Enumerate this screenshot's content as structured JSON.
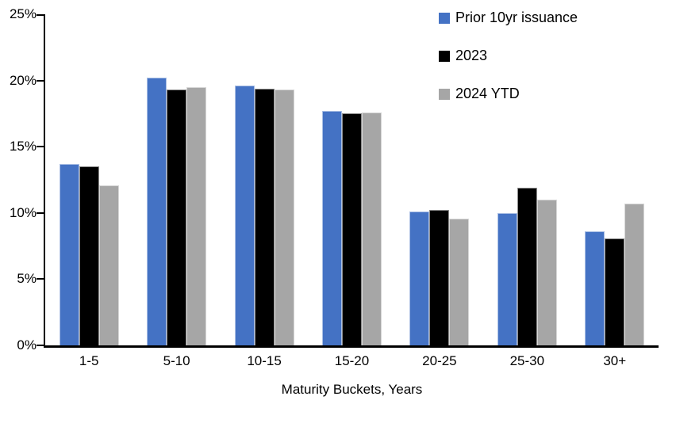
{
  "chart_data": {
    "type": "bar",
    "title": "",
    "xlabel": "Maturity Buckets, Years",
    "ylabel": "",
    "ylim": [
      0,
      25
    ],
    "yticks": [
      0,
      5,
      10,
      15,
      20,
      25
    ],
    "ytick_format": "percent",
    "grid": false,
    "legend_position": "top-right",
    "categories": [
      "1-5",
      "5-10",
      "10-15",
      "15-20",
      "20-25",
      "25-30",
      "30+"
    ],
    "series": [
      {
        "name": "Prior 10yr issuance",
        "color": "#4472C4",
        "values": [
          13.7,
          20.2,
          19.6,
          17.7,
          10.1,
          10.0,
          8.6
        ]
      },
      {
        "name": "2023",
        "color": "#000000",
        "values": [
          13.5,
          19.3,
          19.4,
          17.5,
          10.2,
          11.9,
          8.1
        ]
      },
      {
        "name": "2024 YTD",
        "color": "#A6A6A6",
        "values": [
          12.1,
          19.5,
          19.3,
          17.6,
          9.6,
          11.0,
          10.7
        ]
      }
    ]
  },
  "axis": {
    "ytick_labels": [
      "0%",
      "5%",
      "10%",
      "15%",
      "20%",
      "25%"
    ],
    "axis_color": "#000000"
  }
}
